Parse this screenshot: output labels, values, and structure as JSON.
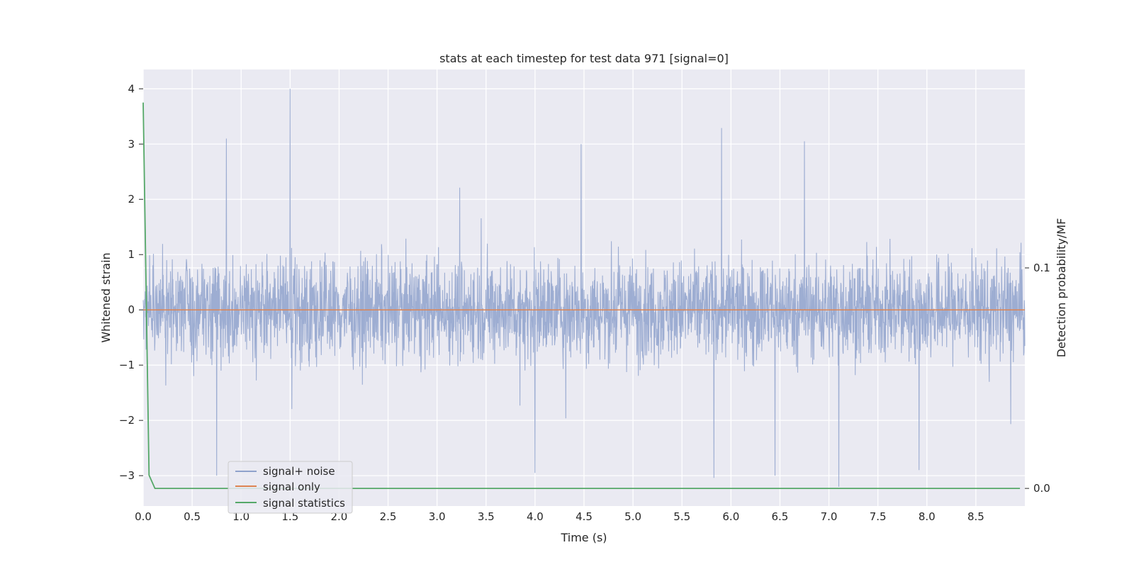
{
  "chart_data": {
    "type": "line",
    "title": "stats at each timestep for test data 971 [signal=0]",
    "xlabel": "Time (s)",
    "ylabel": "Whitened strain",
    "y2label": "Detection probability/MF",
    "xlim": [
      0.0,
      9.0
    ],
    "ylim": [
      -3.55,
      4.35
    ],
    "y2lim": [
      -0.008,
      0.19
    ],
    "xticks": [
      "0.0",
      "0.5",
      "1.0",
      "1.5",
      "2.0",
      "2.5",
      "3.0",
      "3.5",
      "4.0",
      "4.5",
      "5.0",
      "5.5",
      "6.0",
      "6.5",
      "7.0",
      "7.5",
      "8.0",
      "8.5"
    ],
    "yticks": [
      "−3",
      "−2",
      "−1",
      "0",
      "1",
      "2",
      "3",
      "4"
    ],
    "y2ticks": [
      "0.0",
      "0.1"
    ],
    "grid": true,
    "legend_position": "lower-left",
    "series": [
      {
        "name": "signal+ noise",
        "axis": "left",
        "color": "#8fa2cc",
        "sampling": "noise trace sampled densely over 0–9 s, roughly within ±1.5 with peaks near 4.0 (t≈1.5), 3.1 (t≈0.85), 3.05 (t≈6.75), 3.0 (t≈4.47) and troughs near −3.2 (t≈7.1), −3.0 (t≈0.75, 6.45)",
        "peaks": [
          {
            "t": 0.85,
            "v": 3.1
          },
          {
            "t": 1.5,
            "v": 4.0
          },
          {
            "t": 4.47,
            "v": 3.0
          },
          {
            "t": 6.75,
            "v": 3.05
          },
          {
            "t": 0.75,
            "v": -3.0
          },
          {
            "t": 4.0,
            "v": -2.95
          },
          {
            "t": 6.45,
            "v": -3.0
          },
          {
            "t": 7.1,
            "v": -3.2
          },
          {
            "t": 7.92,
            "v": -2.9
          }
        ]
      },
      {
        "name": "signal only",
        "axis": "left",
        "color": "#dd8452",
        "x": [
          0.0,
          9.0
        ],
        "values": [
          0.0,
          0.0
        ]
      },
      {
        "name": "signal statistics",
        "axis": "right",
        "color": "#55a868",
        "x": [
          0.0,
          0.06,
          0.12,
          0.25,
          1.0,
          2.0,
          3.0,
          4.0,
          5.0,
          6.0,
          7.0,
          8.0,
          8.95
        ],
        "values": [
          0.175,
          0.006,
          0.0,
          0.0,
          0.0,
          0.0,
          0.0,
          0.0,
          0.0,
          0.0,
          0.0,
          0.0,
          0.0
        ]
      }
    ]
  }
}
